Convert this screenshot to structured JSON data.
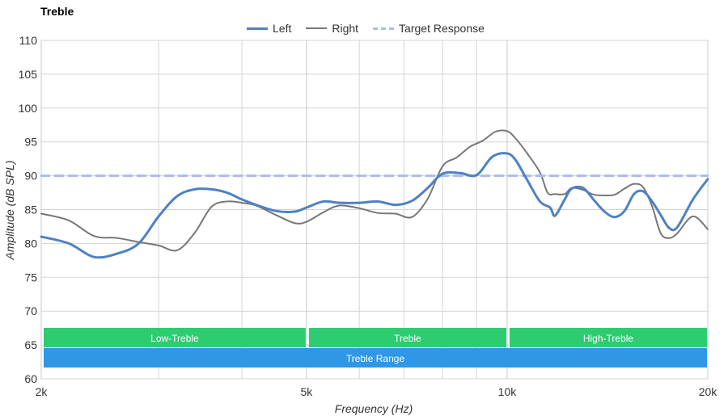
{
  "chart_data": {
    "type": "line",
    "title": "Treble",
    "xlabel": "Frequency (Hz)",
    "ylabel": "Amplitude (dB SPL)",
    "x_scale": "log",
    "xlim": [
      2000,
      20000
    ],
    "ylim": [
      60,
      110
    ],
    "x_ticks": [
      2000,
      5000,
      10000,
      20000
    ],
    "x_tick_labels": [
      "2k",
      "5k",
      "10k",
      "20k"
    ],
    "x_minor_grid": [
      3000,
      4000,
      6000,
      7000,
      8000,
      9000
    ],
    "y_ticks": [
      60,
      65,
      70,
      75,
      80,
      85,
      90,
      95,
      100,
      105,
      110
    ],
    "grid": true,
    "legend_position": "top-center",
    "series": [
      {
        "name": "Left",
        "color": "#4e81c4",
        "style": "solid-thick",
        "x": [
          2000,
          2200,
          2400,
          2600,
          2800,
          3000,
          3200,
          3400,
          3600,
          3800,
          4000,
          4200,
          4500,
          4800,
          5000,
          5300,
          5600,
          6000,
          6400,
          6800,
          7200,
          7600,
          8000,
          8500,
          9000,
          9500,
          10000,
          10300,
          10700,
          11200,
          11600,
          11800,
          12200,
          12500,
          13000,
          13500,
          14000,
          14500,
          15000,
          15500,
          16000,
          16500,
          17000,
          17500,
          18000,
          19000,
          20000
        ],
        "values": [
          81,
          80,
          78,
          78.5,
          80,
          84,
          87,
          88,
          88,
          87.5,
          86.5,
          85.7,
          84.8,
          84.7,
          85.3,
          86.2,
          86,
          86,
          86.2,
          85.7,
          86.3,
          88.2,
          90.3,
          90.4,
          90.1,
          92.8,
          93.3,
          92.3,
          89.5,
          86.2,
          85.3,
          84.1,
          86.5,
          88.1,
          88.2,
          86.4,
          84.7,
          83.9,
          84.8,
          87.3,
          87.7,
          86.2,
          84.2,
          82.3,
          82.4,
          86.5,
          89.5
        ]
      },
      {
        "name": "Right",
        "color": "#777777",
        "style": "solid-thin",
        "x": [
          2000,
          2200,
          2400,
          2600,
          2800,
          3000,
          3200,
          3400,
          3600,
          3800,
          4000,
          4200,
          4500,
          4800,
          5000,
          5300,
          5600,
          6000,
          6400,
          6800,
          7200,
          7600,
          8000,
          8400,
          8800,
          9200,
          9600,
          10000,
          10300,
          10700,
          11200,
          11500,
          11800,
          12200,
          12500,
          13000,
          13500,
          14000,
          14500,
          15000,
          15500,
          16000,
          16500,
          17000,
          17500,
          18000,
          19000,
          20000
        ],
        "values": [
          84.4,
          83.4,
          81.1,
          80.8,
          80.2,
          79.7,
          79,
          81.6,
          85.4,
          86.2,
          86,
          85.6,
          84.2,
          83,
          83.2,
          84.6,
          85.6,
          85.2,
          84.5,
          84.4,
          83.9,
          86.6,
          91.4,
          92.7,
          94.3,
          95.2,
          96.5,
          96.6,
          95.5,
          93.4,
          90.5,
          87.5,
          87.3,
          87.3,
          88.2,
          87.9,
          87.2,
          87.1,
          87.2,
          88.1,
          88.8,
          88.3,
          85.5,
          81.5,
          80.8,
          81.5,
          84,
          82.1
        ]
      },
      {
        "name": "Target Response",
        "color": "#a9bcf2",
        "style": "dashed",
        "x": [
          2000,
          20000
        ],
        "values": [
          90,
          90
        ]
      }
    ],
    "bands": [
      {
        "label": "Low-Treble",
        "start": 2000,
        "end": 5000,
        "row": "top",
        "color": "#2ecc71"
      },
      {
        "label": "Treble",
        "start": 5000,
        "end": 10000,
        "row": "top",
        "color": "#2ecc71"
      },
      {
        "label": "High-Treble",
        "start": 10000,
        "end": 20000,
        "row": "top",
        "color": "#2ecc71"
      },
      {
        "label": "Treble Range",
        "start": 2000,
        "end": 20000,
        "row": "bottom",
        "color": "#2e97e6"
      }
    ]
  }
}
